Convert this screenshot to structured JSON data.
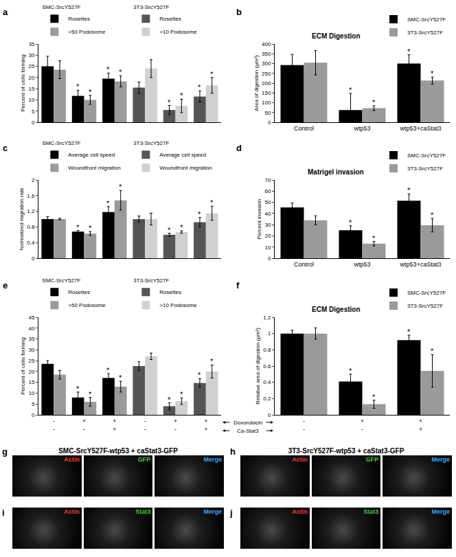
{
  "chart_data": [
    {
      "panel": "a",
      "type": "bar",
      "ylabel": "Percent of cells forming",
      "categories": [
        null,
        null,
        null,
        null,
        null,
        null
      ],
      "groups": [
        "SMC-SrcY527F",
        "3T3-SrcY527F"
      ],
      "legend": "top left",
      "ylim": [
        0,
        35
      ],
      "yticks": [
        0,
        5,
        10,
        15,
        20,
        25,
        30,
        35
      ],
      "grid": false,
      "tick_labels": "y",
      "series": [
        {
          "name": "Rosettes",
          "color": "#000000",
          "values": [
            25,
            11.8,
            19.5,
            null,
            null,
            null
          ],
          "error": [
            4.5,
            2.5,
            2.5,
            null,
            null,
            null
          ],
          "asterisks": [
            null,
            "*",
            "*",
            null,
            null,
            null
          ]
        },
        {
          "name": ">50 Podosome",
          "color": "#9a9a9a",
          "values": [
            23.5,
            10,
            18.3,
            null,
            null,
            null
          ],
          "error": [
            4,
            2,
            2.5,
            null,
            null,
            null
          ],
          "asterisks": [
            null,
            "*",
            "*",
            null,
            null,
            null
          ]
        },
        {
          "name": "Rosettes",
          "color": "#555555",
          "values": [
            null,
            null,
            null,
            15.5,
            5.5,
            11.5
          ],
          "error": [
            null,
            null,
            null,
            2.5,
            2,
            2.5
          ],
          "asterisks": [
            null,
            null,
            null,
            null,
            "*",
            "*"
          ]
        },
        {
          "name": ">10 Podosome",
          "color": "#d0d0d0",
          "values": [
            null,
            null,
            null,
            24,
            7.3,
            16.5
          ],
          "error": [
            null,
            null,
            null,
            4,
            3,
            3.5
          ],
          "asterisks": [
            null,
            null,
            null,
            null,
            "*",
            "*"
          ]
        }
      ]
    },
    {
      "panel": "b",
      "type": "bar",
      "title": "ECM Digestion",
      "ylabel": "Area of digestion (μm²)",
      "categories": [
        "Control",
        "wtp53",
        "wtp53+caStat3"
      ],
      "legend": "top right",
      "ylim": [
        0,
        400
      ],
      "yticks": [
        0,
        50,
        100,
        150,
        200,
        250,
        300,
        350,
        400
      ],
      "grid": false,
      "series": [
        {
          "name": "SMC-SrcY527F",
          "color": "#000000",
          "values": [
            292,
            62,
            300
          ],
          "error": [
            55,
            85,
            45
          ],
          "asterisks": [
            null,
            "*",
            "*"
          ]
        },
        {
          "name": "3T3-SrcY527F",
          "color": "#9a9a9a",
          "values": [
            304,
            72,
            213
          ],
          "error": [
            62,
            12,
            18
          ],
          "asterisks": [
            null,
            "*",
            "*"
          ]
        }
      ]
    },
    {
      "panel": "c",
      "type": "bar",
      "ylabel": "Normalized migration rate",
      "categories": [
        null,
        null,
        null,
        null,
        null,
        null
      ],
      "groups": [
        "SMC-SrcY527F",
        "3T3-SrcY527F"
      ],
      "legend": "top left",
      "ylim": [
        0,
        2
      ],
      "yticks": [
        0,
        0.4,
        0.8,
        1.2,
        1.6,
        2
      ],
      "grid": false,
      "tick_labels": "y",
      "series": [
        {
          "name": "Average cell speed",
          "color": "#000000",
          "values": [
            1,
            0.68,
            1.18,
            null,
            null,
            null
          ],
          "error": [
            0.06,
            0.03,
            0.14,
            null,
            null,
            null
          ],
          "asterisks": [
            null,
            "*",
            "*",
            null,
            null,
            null
          ]
        },
        {
          "name": "Woundfront migration",
          "color": "#9a9a9a",
          "values": [
            1,
            0.63,
            1.48,
            null,
            null,
            null
          ],
          "error": [
            0.02,
            0.05,
            0.25,
            null,
            null,
            null
          ],
          "asterisks": [
            null,
            "*",
            "*",
            null,
            null,
            null
          ]
        },
        {
          "name": "Average cell speed",
          "color": "#555555",
          "values": [
            null,
            null,
            null,
            1,
            0.6,
            0.92
          ],
          "error": [
            null,
            null,
            null,
            0.08,
            0.04,
            0.12
          ],
          "asterisks": [
            null,
            null,
            null,
            null,
            "*",
            "*"
          ]
        },
        {
          "name": "Woundfront migration",
          "color": "#d0d0d0",
          "values": [
            null,
            null,
            null,
            1,
            0.67,
            1.15
          ],
          "error": [
            null,
            null,
            null,
            0.15,
            0.03,
            0.18
          ],
          "asterisks": [
            null,
            null,
            null,
            null,
            "*",
            "*"
          ]
        }
      ]
    },
    {
      "panel": "d",
      "type": "bar",
      "title": "Matrigel invasion",
      "ylabel": "Percent invasion",
      "categories": [
        "Control",
        "wtp53",
        "wtp53+caStat3"
      ],
      "legend": "top right",
      "ylim": [
        0,
        70
      ],
      "yticks": [
        0,
        10,
        20,
        30,
        40,
        50,
        60,
        70
      ],
      "grid": false,
      "series": [
        {
          "name": "SMC-SrcY527F",
          "color": "#000000",
          "values": [
            45.5,
            25,
            51.5
          ],
          "error": [
            4,
            4,
            6
          ],
          "asterisks": [
            null,
            "*",
            "*"
          ]
        },
        {
          "name": "3T3-SrcY527F",
          "color": "#9a9a9a",
          "values": [
            34,
            13,
            29.5
          ],
          "error": [
            4,
            2,
            6
          ],
          "asterisks": [
            null,
            "*",
            "*"
          ]
        }
      ]
    },
    {
      "panel": "e",
      "type": "bar",
      "ylabel": "Percent of cells forming",
      "categories": [
        [
          "-",
          "-"
        ],
        [
          "+",
          "-"
        ],
        [
          "+",
          "+"
        ],
        [
          "-",
          "-"
        ],
        [
          "+",
          "-"
        ],
        [
          "+",
          "+"
        ]
      ],
      "category_rows": [
        "Doxorubicin",
        "Ca-Stat3"
      ],
      "groups": [
        "SMC-SrcY527F",
        "3T3-SrcY527F"
      ],
      "legend": "top left",
      "ylim": [
        0,
        45
      ],
      "yticks": [
        0,
        5,
        10,
        15,
        20,
        25,
        30,
        35,
        40,
        45
      ],
      "grid": false,
      "series": [
        {
          "name": "Rosettes",
          "color": "#000000",
          "values": [
            23.5,
            8,
            17,
            null,
            null,
            null
          ],
          "error": [
            1.5,
            2.5,
            2,
            null,
            null,
            null
          ],
          "asterisks": [
            null,
            "*",
            "*",
            null,
            null,
            null
          ]
        },
        {
          "name": ">50 Podosome",
          "color": "#9a9a9a",
          "values": [
            18.5,
            6,
            13,
            null,
            null,
            null
          ],
          "error": [
            2,
            2,
            2.5,
            null,
            null,
            null
          ],
          "asterisks": [
            null,
            "*",
            "*",
            null,
            null,
            null
          ]
        },
        {
          "name": "Rosettes",
          "color": "#555555",
          "values": [
            null,
            null,
            null,
            22.5,
            4,
            14.7
          ],
          "error": [
            null,
            null,
            null,
            2,
            1.5,
            2
          ],
          "asterisks": [
            null,
            null,
            null,
            null,
            "*",
            "*"
          ]
        },
        {
          "name": ">10 Podosome",
          "color": "#d0d0d0",
          "values": [
            null,
            null,
            null,
            27,
            6.3,
            20
          ],
          "error": [
            null,
            null,
            null,
            1.5,
            1.5,
            3
          ],
          "asterisks": [
            null,
            null,
            null,
            null,
            "*",
            "*"
          ]
        }
      ]
    },
    {
      "panel": "f",
      "type": "bar",
      "title": "ECM Digestion",
      "ylabel": "Relative area of digestion (μm²)",
      "categories": [
        [
          "-",
          "-"
        ],
        [
          "+",
          "-"
        ],
        [
          "+",
          "+"
        ]
      ],
      "legend": "top right",
      "ylim": [
        0,
        1.2
      ],
      "yticks": [
        0,
        0.2,
        0.4,
        0.6,
        0.8,
        1,
        1.2
      ],
      "grid": false,
      "series": [
        {
          "name": "SMC-SrcY527F",
          "color": "#000000",
          "values": [
            1,
            0.41,
            0.92
          ],
          "error": [
            0.04,
            0.09,
            0.06
          ],
          "asterisks": [
            null,
            "*",
            "*"
          ]
        },
        {
          "name": "3T3-SrcY527F",
          "color": "#9a9a9a",
          "values": [
            1,
            0.13,
            0.54
          ],
          "error": [
            0.07,
            0.05,
            0.2
          ],
          "asterisks": [
            null,
            "*",
            "*"
          ]
        }
      ]
    }
  ],
  "images": [
    {
      "panel": "g",
      "title": "SMC-SrcY527F-wtp53 + caStat3-GFP",
      "channels": [
        "Actin",
        "GFP",
        "Merge"
      ]
    },
    {
      "panel": "h",
      "title": "3T3-SrcY527F-wtp53 + caStat3-GFP",
      "channels": [
        "Actin",
        "GFP",
        "Merge"
      ]
    },
    {
      "panel": "i",
      "channels": [
        "Actin",
        "Stat3",
        "Merge"
      ]
    },
    {
      "panel": "j",
      "channels": [
        "Actin",
        "Stat3",
        "Merge"
      ]
    }
  ],
  "channel_colors": {
    "Actin": "#ff3b3b",
    "GFP": "#3ccf3c",
    "Stat3": "#3ccf3c",
    "Merge": "#33aaff"
  }
}
